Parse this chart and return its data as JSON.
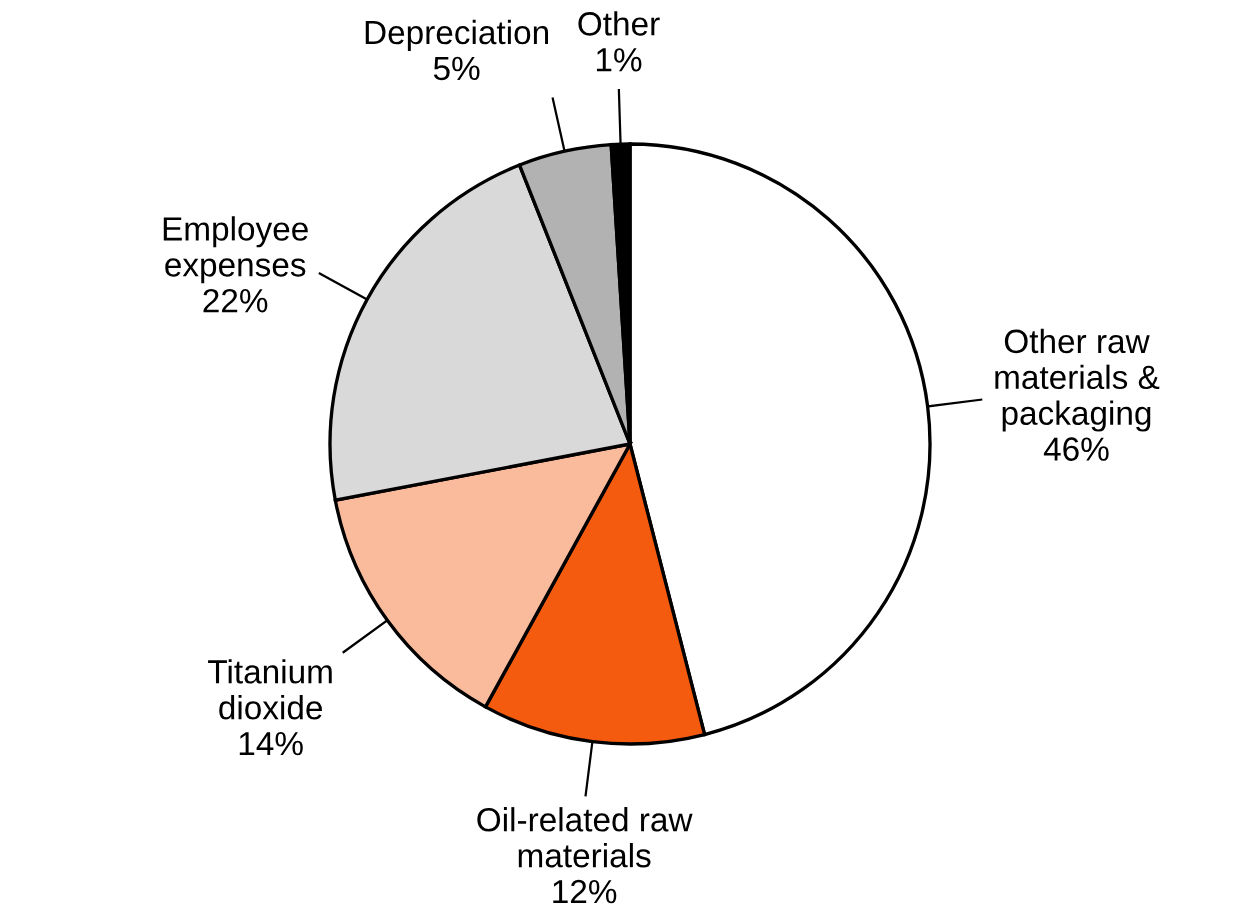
{
  "chart_data": {
    "type": "pie",
    "categories": [
      "Other raw\nmaterials &\npackaging",
      "Oil-related raw\nmaterials",
      "Titanium\ndioxide",
      "Employee\nexpenses",
      "Depreciation",
      "Other"
    ],
    "values": [
      46,
      12,
      14,
      22,
      5,
      1
    ],
    "value_labels": [
      "46%",
      "12%",
      "14%",
      "22%",
      "5%",
      "1%"
    ],
    "colors": [
      "#ffffff",
      "#f45b0f",
      "#fabb9d",
      "#d9d9d9",
      "#b2b2b2",
      "#000000"
    ]
  }
}
